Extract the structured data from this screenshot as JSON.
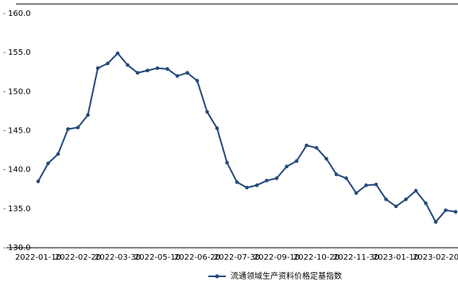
{
  "chart_data": {
    "type": "line",
    "categories": [
      "2022-01-10",
      null,
      null,
      null,
      "2022-02-20",
      null,
      null,
      null,
      "2022-03-30",
      null,
      null,
      null,
      "2022-05-10",
      null,
      null,
      null,
      "2022-06-20",
      null,
      null,
      null,
      "2022-07-30",
      null,
      null,
      null,
      "2022-09-10",
      null,
      null,
      null,
      "2022-10-20",
      null,
      null,
      null,
      "2022-11-30",
      null,
      null,
      null,
      "2023-01-10",
      null,
      null,
      null,
      "2023-02-20",
      null,
      null
    ],
    "series": [
      {
        "name": "流通领域生产资料价格定基指数",
        "color": "#244a7c",
        "values": [
          138.5,
          140.8,
          142.0,
          145.2,
          145.4,
          147.0,
          153.0,
          153.6,
          154.9,
          153.4,
          152.4,
          152.7,
          153.0,
          152.9,
          152.0,
          152.4,
          151.4,
          147.4,
          145.3,
          140.9,
          138.4,
          137.7,
          138.0,
          138.6,
          138.9,
          140.4,
          141.1,
          143.1,
          142.8,
          141.4,
          139.4,
          138.9,
          137.0,
          138.0,
          138.1,
          136.2,
          135.3,
          136.2,
          137.3,
          135.7,
          133.3,
          134.8,
          134.6
        ]
      }
    ],
    "ylim": [
      130,
      160
    ],
    "yticks": [
      {
        "value": 130,
        "label": "130.0"
      },
      {
        "value": 135,
        "label": "135.0"
      },
      {
        "value": 140,
        "label": "140.0"
      },
      {
        "value": 145,
        "label": "145.0"
      },
      {
        "value": 150,
        "label": "150.0"
      },
      {
        "value": 155,
        "label": "155.0"
      },
      {
        "value": 160,
        "label": "160.0"
      }
    ],
    "legend": "bottom"
  }
}
